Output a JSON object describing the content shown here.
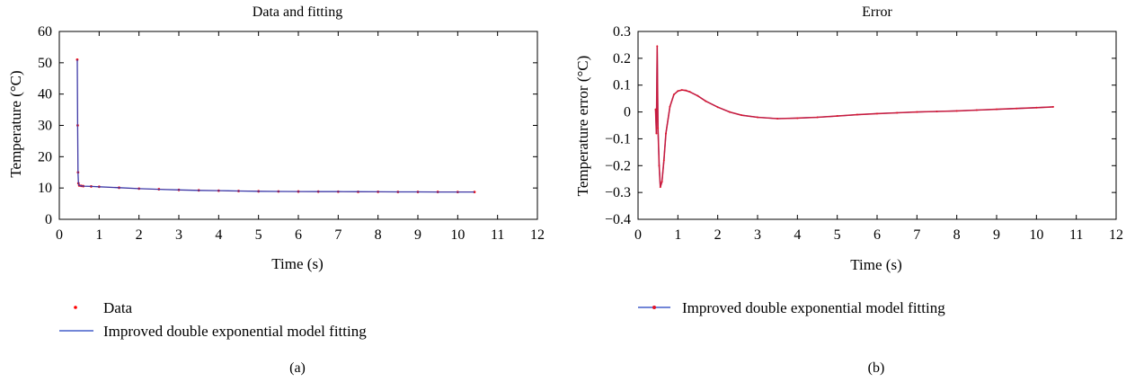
{
  "chart_data": [
    {
      "type": "line",
      "title": "Data and fitting",
      "xlabel": "Time (s)",
      "ylabel": "Temperature (°C)",
      "xlim": [
        0,
        12
      ],
      "ylim": [
        0,
        60
      ],
      "xticks": [
        0,
        1,
        2,
        3,
        4,
        5,
        6,
        7,
        8,
        9,
        10,
        11,
        12
      ],
      "yticks": [
        0,
        10,
        20,
        30,
        40,
        50,
        60
      ],
      "grid": false,
      "legend_position": "below",
      "panel_label": "(a)",
      "series": [
        {
          "name": "Data",
          "style": "points",
          "color": "#ff0000",
          "x": [
            0.45,
            0.46,
            0.47,
            0.48,
            0.5,
            0.55,
            0.6,
            0.8,
            1.0,
            1.5,
            2.0,
            2.5,
            3.0,
            3.5,
            4.0,
            4.5,
            5.0,
            5.5,
            6.0,
            6.5,
            7.0,
            7.5,
            8.0,
            8.5,
            9.0,
            9.5,
            10.0,
            10.42
          ],
          "y": [
            51,
            30,
            15,
            11.5,
            10.8,
            10.7,
            10.6,
            10.5,
            10.4,
            10.1,
            9.8,
            9.6,
            9.4,
            9.25,
            9.15,
            9.05,
            8.95,
            8.9,
            8.88,
            8.85,
            8.83,
            8.8,
            8.78,
            8.76,
            8.75,
            8.74,
            8.73,
            8.72
          ]
        },
        {
          "name": "Improved double exponential model fitting",
          "style": "line",
          "color": "#1f3fbf",
          "x": [
            0.45,
            0.46,
            0.47,
            0.48,
            0.5,
            0.55,
            0.6,
            0.8,
            1.0,
            1.5,
            2.0,
            2.5,
            3.0,
            3.5,
            4.0,
            4.5,
            5.0,
            5.5,
            6.0,
            6.5,
            7.0,
            7.5,
            8.0,
            8.5,
            9.0,
            9.5,
            10.0,
            10.42
          ],
          "y": [
            51,
            30,
            15,
            11.5,
            10.8,
            10.7,
            10.6,
            10.5,
            10.4,
            10.1,
            9.8,
            9.6,
            9.4,
            9.25,
            9.15,
            9.05,
            8.95,
            8.9,
            8.88,
            8.85,
            8.83,
            8.8,
            8.78,
            8.76,
            8.75,
            8.74,
            8.73,
            8.72
          ]
        }
      ]
    },
    {
      "type": "line",
      "title": "Error",
      "xlabel": "Time (s)",
      "ylabel": "Temperature error (°C)",
      "xlim": [
        0,
        12
      ],
      "ylim": [
        -0.4,
        0.3
      ],
      "xticks": [
        0,
        1,
        2,
        3,
        4,
        5,
        6,
        7,
        8,
        9,
        10,
        11,
        12
      ],
      "yticks": [
        -0.4,
        -0.3,
        -0.2,
        -0.1,
        0,
        0.1,
        0.2,
        0.3
      ],
      "ytick_labels": [
        "−0.4",
        "−0.3",
        "−0.2",
        "−0.1",
        "0",
        "0.1",
        "0.2",
        "0.3"
      ],
      "grid": false,
      "legend_position": "below",
      "panel_label": "(b)",
      "series": [
        {
          "name": "Improved double exponential model fitting",
          "style": "line-with-points",
          "line_color": "#1f3fbf",
          "marker_color": "#e0152a",
          "x": [
            0.44,
            0.46,
            0.48,
            0.5,
            0.53,
            0.56,
            0.6,
            0.65,
            0.7,
            0.8,
            0.9,
            1.0,
            1.1,
            1.2,
            1.3,
            1.5,
            1.7,
            2.0,
            2.3,
            2.6,
            3.0,
            3.5,
            4.0,
            4.5,
            5.0,
            5.5,
            6.0,
            6.5,
            7.0,
            7.5,
            8.0,
            8.5,
            9.0,
            9.5,
            10.0,
            10.42
          ],
          "y": [
            0.01,
            -0.08,
            0.245,
            -0.06,
            -0.2,
            -0.28,
            -0.26,
            -0.18,
            -0.08,
            0.02,
            0.065,
            0.078,
            0.082,
            0.08,
            0.075,
            0.06,
            0.04,
            0.018,
            0.0,
            -0.012,
            -0.02,
            -0.025,
            -0.023,
            -0.02,
            -0.015,
            -0.01,
            -0.006,
            -0.003,
            0.0,
            0.002,
            0.004,
            0.007,
            0.01,
            0.013,
            0.016,
            0.019
          ]
        }
      ]
    }
  ]
}
